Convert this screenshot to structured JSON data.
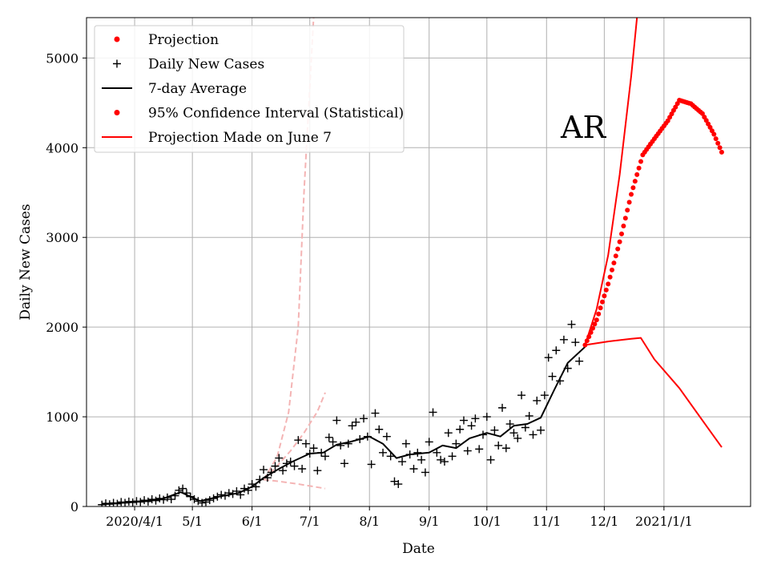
{
  "chart_data": {
    "type": "line",
    "xlabel": "Date",
    "ylabel": "Daily New Cases",
    "x_range": [
      "2020-03-07",
      "2021-02-15"
    ],
    "ylim": [
      0,
      5450
    ],
    "grid": true,
    "legend_position": "top-left",
    "annotation": "AR",
    "x_ticks": [
      {
        "date": "2020-04-01",
        "label": "2020/4/1"
      },
      {
        "date": "2020-05-01",
        "label": "5/1"
      },
      {
        "date": "2020-06-01",
        "label": "6/1"
      },
      {
        "date": "2020-07-01",
        "label": "7/1"
      },
      {
        "date": "2020-08-01",
        "label": "8/1"
      },
      {
        "date": "2020-09-01",
        "label": "9/1"
      },
      {
        "date": "2020-10-01",
        "label": "10/1"
      },
      {
        "date": "2020-11-01",
        "label": "11/1"
      },
      {
        "date": "2020-12-01",
        "label": "12/1"
      },
      {
        "date": "2021-01-01",
        "label": "2021/1/1"
      }
    ],
    "y_ticks": [
      0,
      1000,
      2000,
      3000,
      4000,
      5000
    ],
    "legend": [
      {
        "label": "Projection",
        "style": "dot",
        "color": "#ff0000"
      },
      {
        "label": "Daily New Cases",
        "style": "plus",
        "color": "#000000"
      },
      {
        "label": "7-day Average",
        "style": "line",
        "color": "#000000"
      },
      {
        "label": "95% Confidence Interval (Statistical)",
        "style": "dot",
        "color": "#ff0000"
      },
      {
        "label": "Projection Made on June 7",
        "style": "line",
        "color": "#ff0000"
      }
    ],
    "series": [
      {
        "name": "Daily New Cases",
        "style": "plus",
        "color": "#000000",
        "points": [
          [
            "2020-03-15",
            20
          ],
          [
            "2020-03-17",
            35
          ],
          [
            "2020-03-19",
            25
          ],
          [
            "2020-03-21",
            40
          ],
          [
            "2020-03-23",
            30
          ],
          [
            "2020-03-25",
            50
          ],
          [
            "2020-03-27",
            40
          ],
          [
            "2020-03-29",
            55
          ],
          [
            "2020-03-31",
            45
          ],
          [
            "2020-04-02",
            60
          ],
          [
            "2020-04-04",
            50
          ],
          [
            "2020-04-06",
            70
          ],
          [
            "2020-04-08",
            55
          ],
          [
            "2020-04-10",
            80
          ],
          [
            "2020-04-12",
            65
          ],
          [
            "2020-04-14",
            90
          ],
          [
            "2020-04-16",
            75
          ],
          [
            "2020-04-18",
            100
          ],
          [
            "2020-04-20",
            80
          ],
          [
            "2020-04-22",
            120
          ],
          [
            "2020-04-24",
            180
          ],
          [
            "2020-04-26",
            200
          ],
          [
            "2020-04-28",
            150
          ],
          [
            "2020-04-30",
            110
          ],
          [
            "2020-05-02",
            80
          ],
          [
            "2020-05-04",
            60
          ],
          [
            "2020-05-06",
            40
          ],
          [
            "2020-05-08",
            50
          ],
          [
            "2020-05-10",
            70
          ],
          [
            "2020-05-12",
            90
          ],
          [
            "2020-05-14",
            110
          ],
          [
            "2020-05-16",
            130
          ],
          [
            "2020-05-18",
            120
          ],
          [
            "2020-05-20",
            150
          ],
          [
            "2020-05-22",
            140
          ],
          [
            "2020-05-24",
            170
          ],
          [
            "2020-05-26",
            130
          ],
          [
            "2020-05-28",
            200
          ],
          [
            "2020-05-30",
            180
          ],
          [
            "2020-06-01",
            250
          ],
          [
            "2020-06-03",
            220
          ],
          [
            "2020-06-05",
            300
          ],
          [
            "2020-06-07",
            410
          ],
          [
            "2020-06-09",
            320
          ],
          [
            "2020-06-11",
            380
          ],
          [
            "2020-06-13",
            450
          ],
          [
            "2020-06-15",
            540
          ],
          [
            "2020-06-17",
            400
          ],
          [
            "2020-06-19",
            480
          ],
          [
            "2020-06-21",
            500
          ],
          [
            "2020-06-23",
            450
          ],
          [
            "2020-06-25",
            740
          ],
          [
            "2020-06-27",
            420
          ],
          [
            "2020-06-29",
            700
          ],
          [
            "2020-07-01",
            590
          ],
          [
            "2020-07-03",
            650
          ],
          [
            "2020-07-05",
            400
          ],
          [
            "2020-07-07",
            600
          ],
          [
            "2020-07-09",
            560
          ],
          [
            "2020-07-11",
            770
          ],
          [
            "2020-07-13",
            720
          ],
          [
            "2020-07-15",
            960
          ],
          [
            "2020-07-17",
            680
          ],
          [
            "2020-07-19",
            480
          ],
          [
            "2020-07-21",
            700
          ],
          [
            "2020-07-23",
            900
          ],
          [
            "2020-07-25",
            940
          ],
          [
            "2020-07-27",
            750
          ],
          [
            "2020-07-29",
            980
          ],
          [
            "2020-07-31",
            780
          ],
          [
            "2020-08-02",
            470
          ],
          [
            "2020-08-04",
            1040
          ],
          [
            "2020-08-06",
            860
          ],
          [
            "2020-08-08",
            600
          ],
          [
            "2020-08-10",
            780
          ],
          [
            "2020-08-12",
            560
          ],
          [
            "2020-08-14",
            280
          ],
          [
            "2020-08-16",
            250
          ],
          [
            "2020-08-18",
            500
          ],
          [
            "2020-08-20",
            700
          ],
          [
            "2020-08-22",
            580
          ],
          [
            "2020-08-24",
            420
          ],
          [
            "2020-08-26",
            600
          ],
          [
            "2020-08-28",
            520
          ],
          [
            "2020-08-30",
            380
          ],
          [
            "2020-09-01",
            720
          ],
          [
            "2020-09-03",
            1050
          ],
          [
            "2020-09-05",
            600
          ],
          [
            "2020-09-07",
            520
          ],
          [
            "2020-09-09",
            500
          ],
          [
            "2020-09-11",
            820
          ],
          [
            "2020-09-13",
            560
          ],
          [
            "2020-09-15",
            700
          ],
          [
            "2020-09-17",
            860
          ],
          [
            "2020-09-19",
            960
          ],
          [
            "2020-09-21",
            620
          ],
          [
            "2020-09-23",
            900
          ],
          [
            "2020-09-25",
            980
          ],
          [
            "2020-09-27",
            640
          ],
          [
            "2020-09-29",
            800
          ],
          [
            "2020-10-01",
            1000
          ],
          [
            "2020-10-03",
            520
          ],
          [
            "2020-10-05",
            850
          ],
          [
            "2020-10-07",
            680
          ],
          [
            "2020-10-09",
            1100
          ],
          [
            "2020-10-11",
            650
          ],
          [
            "2020-10-13",
            920
          ],
          [
            "2020-10-15",
            820
          ],
          [
            "2020-10-17",
            760
          ],
          [
            "2020-10-19",
            1240
          ],
          [
            "2020-10-21",
            880
          ],
          [
            "2020-10-23",
            1010
          ],
          [
            "2020-10-25",
            800
          ],
          [
            "2020-10-27",
            1180
          ],
          [
            "2020-10-29",
            850
          ],
          [
            "2020-10-31",
            1240
          ],
          [
            "2020-11-02",
            1660
          ],
          [
            "2020-11-04",
            1450
          ],
          [
            "2020-11-06",
            1740
          ],
          [
            "2020-11-08",
            1400
          ],
          [
            "2020-11-10",
            1860
          ],
          [
            "2020-11-12",
            1540
          ],
          [
            "2020-11-14",
            2030
          ],
          [
            "2020-11-16",
            1830
          ],
          [
            "2020-11-18",
            1620
          ]
        ]
      },
      {
        "name": "7-day Average",
        "style": "line",
        "color": "#000000",
        "points": [
          [
            "2020-03-15",
            25
          ],
          [
            "2020-04-01",
            50
          ],
          [
            "2020-04-15",
            80
          ],
          [
            "2020-04-25",
            160
          ],
          [
            "2020-05-05",
            60
          ],
          [
            "2020-05-15",
            110
          ],
          [
            "2020-05-25",
            150
          ],
          [
            "2020-06-01",
            220
          ],
          [
            "2020-06-07",
            320
          ],
          [
            "2020-06-15",
            420
          ],
          [
            "2020-06-22",
            500
          ],
          [
            "2020-07-01",
            590
          ],
          [
            "2020-07-08",
            600
          ],
          [
            "2020-07-15",
            690
          ],
          [
            "2020-07-22",
            720
          ],
          [
            "2020-08-01",
            780
          ],
          [
            "2020-08-08",
            700
          ],
          [
            "2020-08-15",
            540
          ],
          [
            "2020-08-22",
            580
          ],
          [
            "2020-09-01",
            600
          ],
          [
            "2020-09-08",
            680
          ],
          [
            "2020-09-15",
            650
          ],
          [
            "2020-09-22",
            760
          ],
          [
            "2020-10-01",
            820
          ],
          [
            "2020-10-08",
            780
          ],
          [
            "2020-10-15",
            900
          ],
          [
            "2020-10-22",
            920
          ],
          [
            "2020-10-29",
            990
          ],
          [
            "2020-11-05",
            1300
          ],
          [
            "2020-11-12",
            1600
          ],
          [
            "2020-11-21",
            1780
          ]
        ]
      },
      {
        "name": "Projection",
        "style": "dot",
        "color": "#ff0000",
        "points": [
          [
            "2020-11-21",
            1800
          ],
          [
            "2020-11-27",
            2080
          ],
          [
            "2020-12-03",
            2480
          ],
          [
            "2020-12-09",
            2950
          ],
          [
            "2020-12-15",
            3480
          ],
          [
            "2020-12-21",
            3920
          ],
          [
            "2020-12-27",
            4100
          ],
          [
            "2021-01-03",
            4300
          ],
          [
            "2021-01-09",
            4530
          ],
          [
            "2021-01-15",
            4490
          ],
          [
            "2021-01-21",
            4380
          ],
          [
            "2021-01-27",
            4150
          ],
          [
            "2021-01-31",
            3950
          ]
        ]
      },
      {
        "name": "95% Confidence Interval (Statistical) upper",
        "style": "line",
        "color": "#ff0000",
        "points": [
          [
            "2020-11-21",
            1800
          ],
          [
            "2020-11-27",
            2200
          ],
          [
            "2020-12-03",
            2800
          ],
          [
            "2020-12-09",
            3700
          ],
          [
            "2020-12-15",
            4800
          ],
          [
            "2020-12-18",
            5450
          ]
        ]
      },
      {
        "name": "95% Confidence Interval (Statistical) lower",
        "style": "line",
        "color": "#ff0000",
        "points": [
          [
            "2020-11-21",
            1800
          ],
          [
            "2020-12-03",
            1840
          ],
          [
            "2020-12-15",
            1870
          ],
          [
            "2020-12-20",
            1880
          ],
          [
            "2020-12-27",
            1640
          ],
          [
            "2021-01-09",
            1320
          ],
          [
            "2021-01-21",
            960
          ],
          [
            "2021-01-31",
            660
          ]
        ]
      },
      {
        "name": "Projection Made on June 7 upper",
        "style": "dashed",
        "color": "#f4b4b4",
        "points": [
          [
            "2020-06-07",
            300
          ],
          [
            "2020-06-14",
            550
          ],
          [
            "2020-06-20",
            1050
          ],
          [
            "2020-06-25",
            2000
          ],
          [
            "2020-06-28",
            3500
          ],
          [
            "2020-07-03",
            5450
          ]
        ]
      },
      {
        "name": "Projection Made on June 7 mid",
        "style": "dashed",
        "color": "#f4b4b4",
        "points": [
          [
            "2020-06-07",
            300
          ],
          [
            "2020-06-14",
            450
          ],
          [
            "2020-06-21",
            620
          ],
          [
            "2020-06-28",
            820
          ],
          [
            "2020-07-05",
            1060
          ],
          [
            "2020-07-09",
            1270
          ]
        ]
      },
      {
        "name": "Projection Made on June 7 lower",
        "style": "dashed",
        "color": "#f4b4b4",
        "points": [
          [
            "2020-06-07",
            300
          ],
          [
            "2020-06-15",
            280
          ],
          [
            "2020-06-25",
            250
          ],
          [
            "2020-07-09",
            200
          ]
        ]
      }
    ]
  }
}
